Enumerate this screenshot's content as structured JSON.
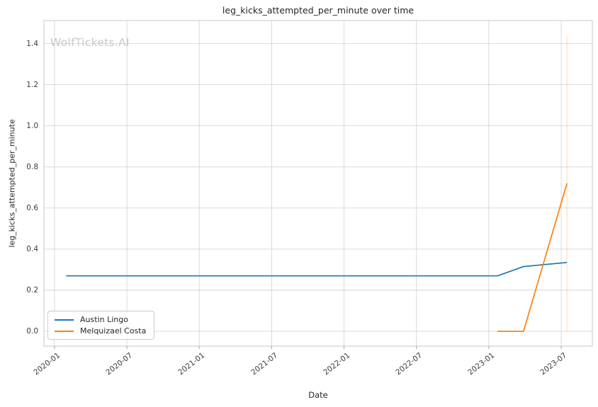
{
  "watermark": "WolfTickets.AI",
  "chart_data": {
    "type": "line",
    "title": "leg_kicks_attempted_per_minute over time",
    "xlabel": "Date",
    "ylabel": "leg_kicks_attempted_per_minute",
    "grid": true,
    "legend_position": "lower-left",
    "xlim": [
      2019.927,
      2023.715
    ],
    "ylim": [
      -0.072,
      1.512
    ],
    "x_ticks": [
      {
        "label": "2020-01",
        "x": 2020.0
      },
      {
        "label": "2020-07",
        "x": 2020.5
      },
      {
        "label": "2021-01",
        "x": 2021.0
      },
      {
        "label": "2021-07",
        "x": 2021.5
      },
      {
        "label": "2022-01",
        "x": 2022.0
      },
      {
        "label": "2022-07",
        "x": 2022.5
      },
      {
        "label": "2023-01",
        "x": 2023.0
      },
      {
        "label": "2023-07",
        "x": 2023.5
      }
    ],
    "y_ticks": [
      {
        "label": "0.0",
        "y": 0.0
      },
      {
        "label": "0.2",
        "y": 0.2
      },
      {
        "label": "0.4",
        "y": 0.4
      },
      {
        "label": "0.6",
        "y": 0.6
      },
      {
        "label": "0.8",
        "y": 0.8
      },
      {
        "label": "1.0",
        "y": 1.0
      },
      {
        "label": "1.2",
        "y": 1.2
      },
      {
        "label": "1.4",
        "y": 1.4
      }
    ],
    "series": [
      {
        "name": "Austin Lingo",
        "color": "#1f77b4",
        "points": [
          [
            2020.08,
            0.27
          ],
          [
            2023.06,
            0.27
          ],
          [
            2023.24,
            0.315
          ],
          [
            2023.54,
            0.335
          ]
        ]
      },
      {
        "name": "Melquizael Costa",
        "color": "#ff7f0e",
        "points": [
          [
            2023.06,
            0.0
          ],
          [
            2023.24,
            0.0
          ],
          [
            2023.54,
            0.72
          ]
        ]
      }
    ],
    "annotations": [
      {
        "type": "vline",
        "x": 2023.54,
        "y_from": 0.0,
        "y_to": 1.44,
        "color": "#ff7f0e",
        "alpha": 0.25
      }
    ]
  },
  "style": {
    "grid_color": "#d5d5d5",
    "spine_color": "#cccccc",
    "tick_mark_color": "#999999",
    "background": "#ffffff"
  }
}
